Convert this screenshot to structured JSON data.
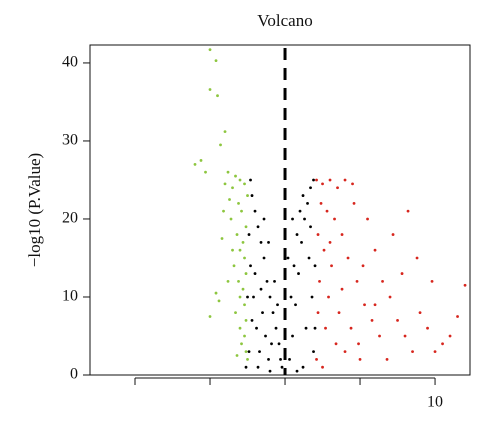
{
  "chart_data": {
    "type": "scatter",
    "title": "Volcano",
    "ylabel": "−log10 (P.Value)",
    "xlim": [
      -13,
      12.33
    ],
    "ylim": [
      0,
      42.3
    ],
    "xticks": [
      {
        "value": -10,
        "label": null
      },
      {
        "value": -5,
        "label": null
      },
      {
        "value": 0,
        "label": null
      },
      {
        "value": 5,
        "label": null
      },
      10
    ],
    "yticks": [
      0,
      10,
      20,
      30,
      40
    ],
    "vline": 0,
    "series": [
      {
        "color": "#8dc63f",
        "x": [
          -5.0,
          -4.6,
          -5.0,
          -4.5,
          -4.0,
          -4.3,
          -5.6,
          -6.0,
          -5.3,
          -3.8,
          -3.3,
          -3.0,
          -2.7,
          -3.5,
          -4.0,
          -2.5,
          -3.1,
          -2.9,
          -3.6,
          -2.6,
          -3.2,
          -2.8,
          -4.2,
          -3.0,
          -2.7,
          -3.4,
          -2.6,
          -3.1,
          -2.8,
          -4.6,
          -3.0,
          -2.7,
          -3.3,
          -2.6,
          -3.0,
          -2.7,
          -2.9,
          -2.6,
          -3.2,
          -4.4,
          -5.0,
          -3.8,
          -3.5,
          -4.1,
          -3.7,
          -2.5
        ],
        "y": [
          41.7,
          40.3,
          36.6,
          35.8,
          31.2,
          29.5,
          27.5,
          27,
          26,
          26,
          25.5,
          25,
          24.5,
          24,
          24.5,
          23,
          22,
          21,
          20,
          19,
          18,
          17,
          17.5,
          16,
          15,
          14,
          13,
          12,
          11,
          10.5,
          10,
          9,
          8,
          7,
          6,
          5,
          4,
          3,
          2.5,
          9.5,
          7.5,
          12,
          16,
          21,
          22.5,
          2
        ]
      },
      {
        "color": "#000000",
        "x": [
          -2.2,
          -2.0,
          -1.8,
          -1.6,
          -1.4,
          -1.2,
          -1.0,
          -0.8,
          -0.6,
          -0.4,
          -0.3,
          -2.4,
          -2.3,
          -2.1,
          -1.9,
          -1.7,
          -1.5,
          -1.3,
          -1.1,
          -2.4,
          -2.0,
          -1.6,
          -1.8,
          -0.9,
          -2.2,
          -2.5,
          -1.4,
          -1.1,
          -0.7,
          -0.5,
          -2.3,
          -2.6,
          -0.2,
          -1.0,
          0.3,
          0.5,
          0.7,
          0.9,
          1.1,
          1.3,
          1.5,
          1.7,
          1.9,
          0.4,
          0.6,
          0.8,
          1.0,
          1.2,
          1.6,
          1.8,
          1.4,
          1.9,
          1.2,
          0.8,
          1.7,
          2.0,
          2.0,
          0.2,
          0.5
        ],
        "y": [
          23,
          21,
          19,
          17,
          15,
          12,
          10,
          8,
          6,
          4,
          2,
          18,
          14,
          10,
          6,
          3,
          8,
          5,
          2,
          3,
          13,
          11,
          1,
          4,
          7,
          10,
          20,
          17,
          12,
          9,
          25,
          1,
          1,
          0.5,
          2,
          5,
          9,
          13,
          17,
          20,
          22,
          24,
          25,
          10,
          14,
          18,
          21,
          23,
          15,
          10,
          6,
          3,
          1,
          0.5,
          19,
          14,
          6,
          15,
          20
        ]
      },
      {
        "color": "#d7261e",
        "x": [
          2.1,
          2.5,
          3,
          3.5,
          4,
          4.5,
          2.4,
          2.8,
          3.3,
          2.2,
          2.6,
          3.1,
          2.3,
          2.9,
          2.2,
          2.7,
          3.4,
          2.1,
          2.5,
          3.8,
          4.2,
          4.8,
          5.3,
          5.8,
          6.3,
          4.0,
          5.0,
          6.0,
          6.5,
          7.0,
          7.5,
          8.0,
          8.5,
          9.0,
          9.5,
          10.5,
          8.2,
          7.2,
          9.8,
          11.0,
          12.0,
          11.5,
          6.8,
          7.8,
          5.5,
          4.6,
          3.6,
          4.4,
          5.2,
          8.8,
          10.0,
          6.0,
          3.0,
          3.8,
          4.9
        ],
        "y": [
          25,
          24.5,
          25,
          24,
          25,
          24.5,
          22,
          21,
          20,
          18,
          16,
          14,
          12,
          10,
          8,
          6,
          4,
          2,
          1,
          18,
          15,
          12,
          9,
          7,
          5,
          3,
          2,
          16,
          12,
          10,
          7,
          5,
          3,
          8,
          6,
          4,
          21,
          18,
          12,
          5,
          11.5,
          7.5,
          2,
          13,
          20,
          22,
          8,
          6,
          14,
          15,
          3,
          9,
          17,
          11,
          4
        ]
      }
    ]
  }
}
